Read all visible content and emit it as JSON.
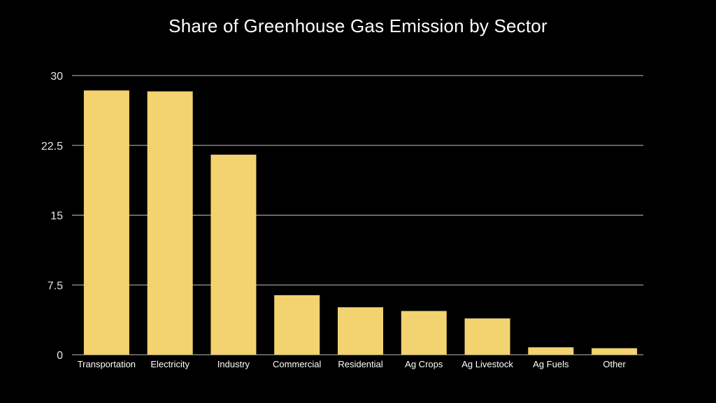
{
  "chart_data": {
    "type": "bar",
    "title": "Share of Greenhouse Gas Emission by Sector",
    "xlabel": "",
    "ylabel": "",
    "categories": [
      "Transportation",
      "Electricity",
      "Industry",
      "Commercial",
      "Residential",
      "Ag Crops",
      "Ag Livestock",
      "Ag Fuels",
      "Other"
    ],
    "values": [
      28.4,
      28.3,
      21.5,
      6.4,
      5.1,
      4.7,
      3.9,
      0.8,
      0.7
    ],
    "ylim": [
      0,
      30
    ],
    "yticks": [
      0,
      7.5,
      15,
      22.5,
      30
    ],
    "ytick_labels": [
      "0",
      "7.5",
      "15",
      "22.5",
      "30"
    ],
    "grid": true,
    "legend": "none",
    "colors": {
      "background": "#000000",
      "bar": "#f2d36f",
      "grid": "#bfbfbf",
      "text": "#ffffff"
    }
  }
}
